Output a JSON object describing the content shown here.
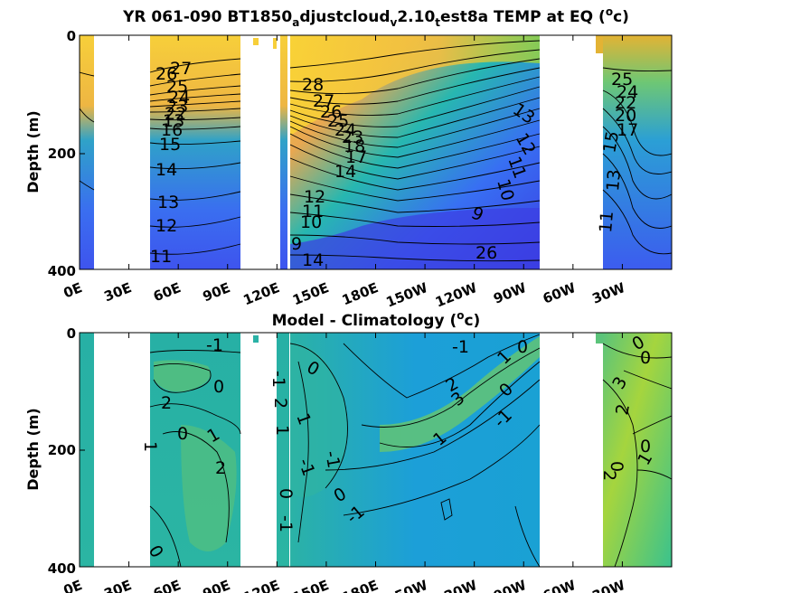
{
  "chart_data": [
    {
      "type": "heatmap",
      "title_parts": {
        "base": "YR 061-090 BT1850",
        "sub1": "a",
        "mid1": "djustcloud",
        "sub2": "v",
        "mid2": "2.10",
        "sub3": "t",
        "tail": "est8a TEMP at EQ (",
        "sup": "o",
        "end": "c)"
      },
      "ylabel": "Depth (m)",
      "xticks": [
        "0E",
        "30E",
        "60E",
        "90E",
        "120E",
        "150E",
        "180E",
        "150W",
        "120W",
        "90W",
        "60W",
        "30W"
      ],
      "yticks": [
        "0",
        "200",
        "400"
      ],
      "ylim": [
        400,
        0
      ],
      "contour_labels": [
        "27",
        "26",
        "25",
        "24",
        "23",
        "22",
        "21",
        "20",
        "19",
        "18",
        "17",
        "16",
        "15",
        "14",
        "13",
        "12",
        "11",
        "28",
        "27",
        "26",
        "25",
        "24",
        "23",
        "22",
        "21",
        "20",
        "19",
        "18",
        "17",
        "16",
        "15",
        "14",
        "13",
        "12",
        "11",
        "10",
        "9",
        "14",
        "13",
        "12",
        "11",
        "10",
        "9",
        "26",
        "25",
        "24",
        "23",
        "22",
        "21",
        "20",
        "19",
        "18",
        "17",
        "16",
        "15",
        "14",
        "13",
        "12",
        "11",
        "10",
        "9"
      ],
      "colors": {
        "warm": "#f9d134",
        "mid": "#35b8a0",
        "cold": "#3d3ce0"
      }
    },
    {
      "type": "heatmap",
      "title_parts": {
        "base": "Model - Climatology (",
        "sup": "o",
        "end": "c)"
      },
      "ylabel": "Depth (m)",
      "xticks": [
        "0E",
        "30E",
        "60E",
        "90E",
        "120E",
        "150E",
        "180E",
        "150W",
        "120W",
        "90W",
        "60W",
        "30W"
      ],
      "yticks": [
        "0",
        "200",
        "400"
      ],
      "ylim": [
        400,
        0
      ],
      "contour_labels": [
        "-1",
        "2",
        "0",
        "1",
        "2",
        "0",
        "-1",
        "2",
        "3",
        "-1",
        "1",
        "2",
        "2",
        "1",
        "0",
        "-1",
        "1",
        "0",
        "-1",
        "0",
        "1",
        "-1",
        "0",
        "1",
        "1",
        "0",
        "2",
        "0",
        "1",
        "0",
        "-1",
        "0",
        "1",
        "1",
        "0",
        "-1",
        "3",
        "2",
        "1",
        "0",
        "1",
        "0"
      ],
      "colors": {
        "pos": "#8ccf4e",
        "zero": "#2fb2a2",
        "neg": "#1fa0d6"
      }
    }
  ]
}
